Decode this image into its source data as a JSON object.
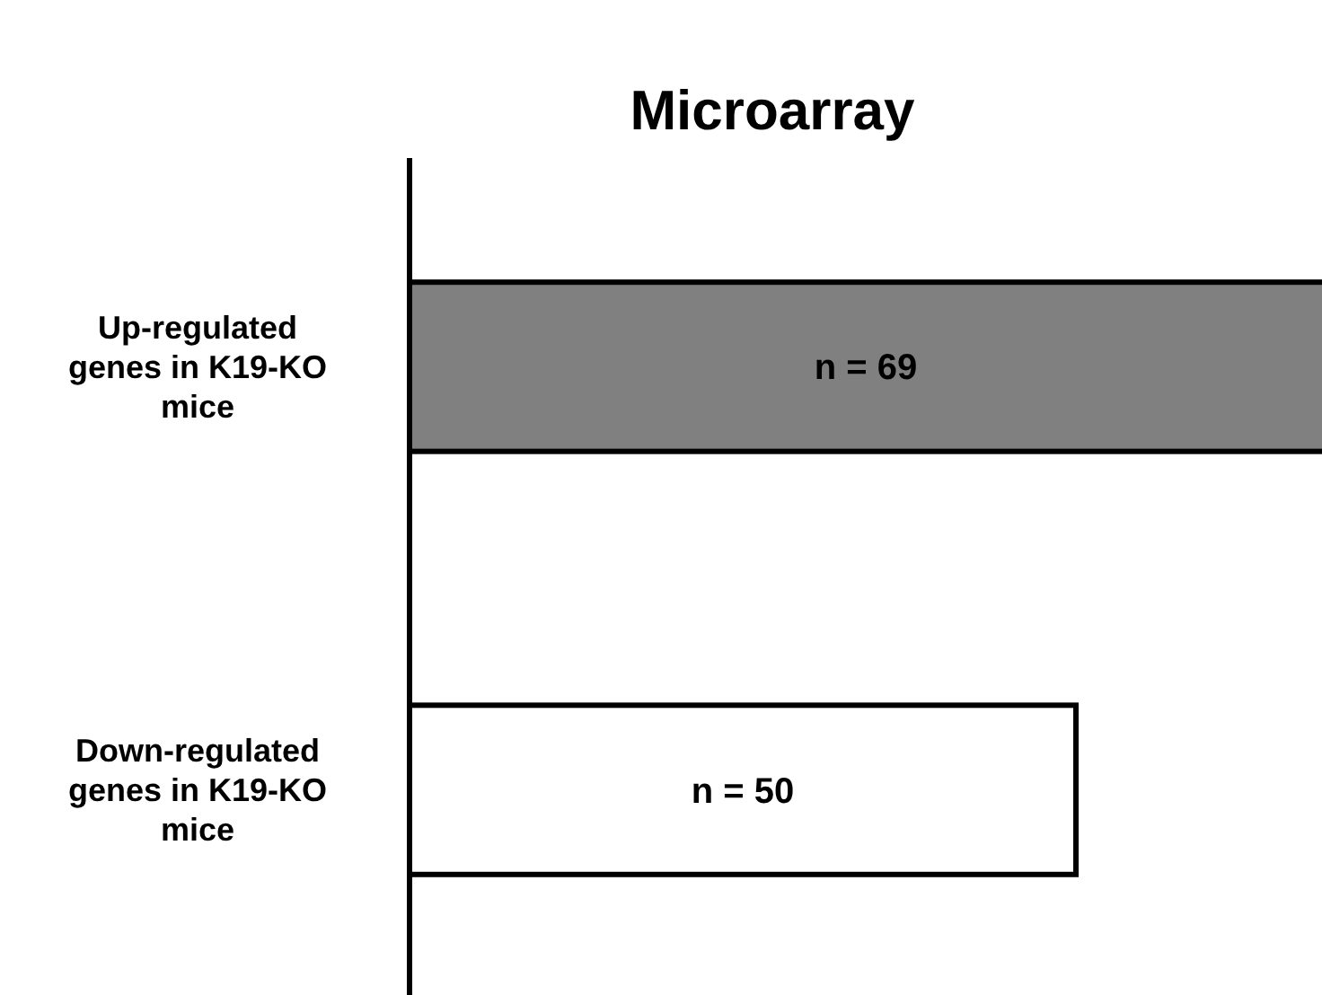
{
  "chart_data": {
    "type": "bar",
    "title": "Microarray",
    "orientation": "horizontal",
    "categories": [
      "Up-regulated genes in K19-KO mice",
      "Down-regulated genes in K19-KO mice"
    ],
    "values": [
      69,
      50
    ],
    "colors": [
      "#808080",
      "#ffffff"
    ],
    "value_labels": [
      "n = 69",
      "n = 50"
    ]
  }
}
